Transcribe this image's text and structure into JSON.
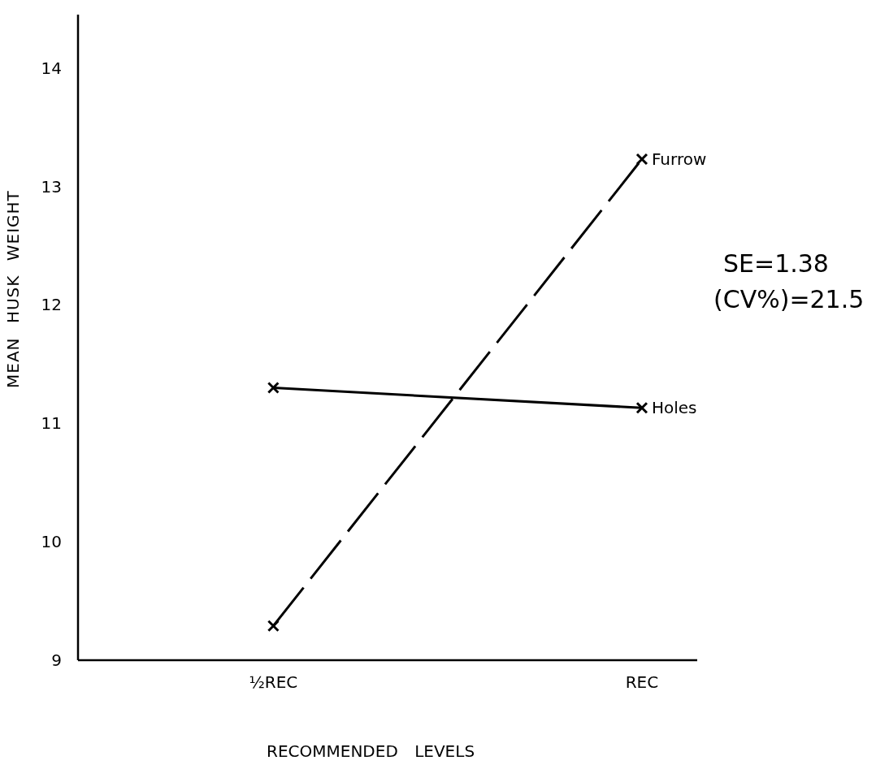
{
  "chart_data": {
    "type": "line",
    "categories": [
      "½REC",
      "REC"
    ],
    "series": [
      {
        "name": "Furrow",
        "color": "#000000",
        "line_style": "dashed",
        "values": [
          9.29,
          13.23
        ]
      },
      {
        "name": "Holes",
        "color": "#000000",
        "line_style": "solid",
        "values": [
          11.3,
          11.13
        ]
      }
    ],
    "xlabel": "RECOMMENDED LEVELS",
    "ylabel": "MEAN HUSK WEIGHT",
    "ylim": [
      9,
      14.45
    ],
    "yticks": [
      9,
      10,
      11,
      12,
      13,
      14
    ],
    "annotations": [
      "SE=1.38",
      "(CV%)=21.5"
    ],
    "marker": "cross"
  }
}
